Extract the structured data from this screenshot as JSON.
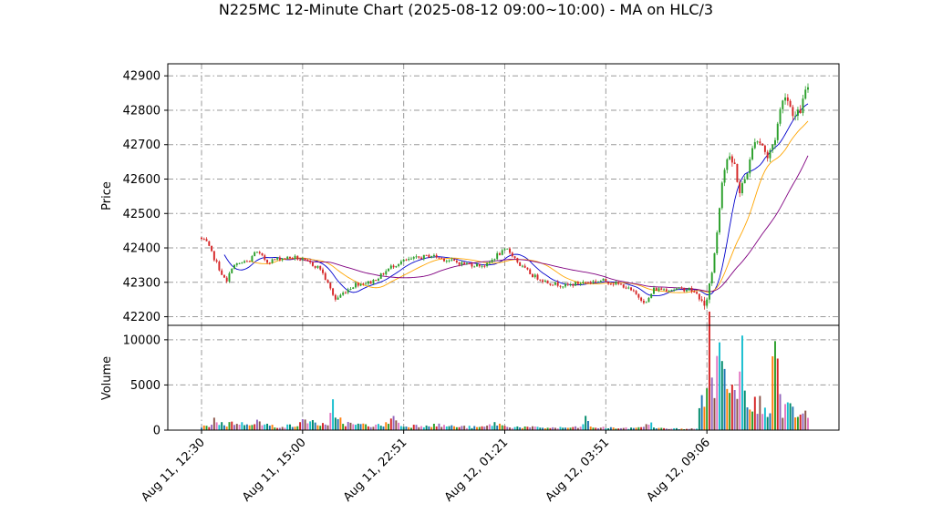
{
  "chart_data": {
    "type": "candlestick",
    "title": "N225MC 12-Minute Chart (2025-08-12 09:00~10:00) - MA on HLC/3",
    "price_panel": {
      "ylabel": "Price",
      "ylim": [
        42175,
        42935
      ],
      "yticks": [
        42200,
        42300,
        42400,
        42500,
        42600,
        42700,
        42800,
        42900
      ],
      "ytick_labels": [
        "42200",
        "42300",
        "42400",
        "42500",
        "42600",
        "42700",
        "42800",
        "42900"
      ]
    },
    "volume_panel": {
      "ylabel": "Volume",
      "ylim": [
        0,
        11600
      ],
      "yticks": [
        0,
        5000,
        10000
      ],
      "ytick_labels": [
        "0",
        "5000",
        "10000"
      ]
    },
    "x_ticks": [
      {
        "index": 0,
        "label": "Aug 11, 12:30"
      },
      {
        "index": 40,
        "label": "Aug 11, 15:00"
      },
      {
        "index": 80,
        "label": "Aug 11, 22:51"
      },
      {
        "index": 120,
        "label": "Aug 12, 01:21"
      },
      {
        "index": 160,
        "label": "Aug 12, 03:51"
      },
      {
        "index": 200,
        "label": "Aug 12, 09:06"
      }
    ],
    "bar_count": 241,
    "anchors": [
      [
        0,
        42430
      ],
      [
        3,
        42415
      ],
      [
        6,
        42370
      ],
      [
        8,
        42340
      ],
      [
        10,
        42310
      ],
      [
        11,
        42300
      ],
      [
        13,
        42345
      ],
      [
        16,
        42355
      ],
      [
        20,
        42360
      ],
      [
        22,
        42390
      ],
      [
        24,
        42380
      ],
      [
        27,
        42360
      ],
      [
        32,
        42370
      ],
      [
        38,
        42372
      ],
      [
        44,
        42355
      ],
      [
        48,
        42340
      ],
      [
        52,
        42280
      ],
      [
        54,
        42250
      ],
      [
        58,
        42275
      ],
      [
        62,
        42295
      ],
      [
        68,
        42300
      ],
      [
        72,
        42320
      ],
      [
        76,
        42345
      ],
      [
        80,
        42360
      ],
      [
        86,
        42370
      ],
      [
        92,
        42378
      ],
      [
        98,
        42365
      ],
      [
        104,
        42355
      ],
      [
        110,
        42350
      ],
      [
        114,
        42350
      ],
      [
        118,
        42380
      ],
      [
        122,
        42395
      ],
      [
        124,
        42380
      ],
      [
        127,
        42350
      ],
      [
        132,
        42320
      ],
      [
        138,
        42300
      ],
      [
        145,
        42290
      ],
      [
        152,
        42300
      ],
      [
        160,
        42305
      ],
      [
        168,
        42290
      ],
      [
        172,
        42270
      ],
      [
        177,
        42240
      ],
      [
        180,
        42280
      ],
      [
        186,
        42280
      ],
      [
        194,
        42280
      ],
      [
        198,
        42260
      ],
      [
        200,
        42220
      ],
      [
        203,
        42330
      ],
      [
        205,
        42450
      ],
      [
        207,
        42600
      ],
      [
        209,
        42660
      ],
      [
        212,
        42640
      ],
      [
        214,
        42560
      ],
      [
        216,
        42600
      ],
      [
        218,
        42650
      ],
      [
        220,
        42720
      ],
      [
        223,
        42700
      ],
      [
        225,
        42660
      ],
      [
        228,
        42720
      ],
      [
        230,
        42800
      ],
      [
        232,
        42850
      ],
      [
        234,
        42810
      ],
      [
        236,
        42780
      ],
      [
        238,
        42800
      ],
      [
        240,
        42850
      ],
      [
        241,
        42870
      ]
    ],
    "volume_anchors": [
      [
        0,
        300
      ],
      [
        3,
        500
      ],
      [
        5,
        1200
      ],
      [
        6,
        900
      ],
      [
        8,
        700
      ],
      [
        10,
        600
      ],
      [
        13,
        900
      ],
      [
        16,
        650
      ],
      [
        20,
        900
      ],
      [
        22,
        1000
      ],
      [
        24,
        600
      ],
      [
        30,
        400
      ],
      [
        38,
        500
      ],
      [
        40,
        900
      ],
      [
        42,
        1200
      ],
      [
        44,
        900
      ],
      [
        50,
        400
      ],
      [
        52,
        2500
      ],
      [
        54,
        1500
      ],
      [
        56,
        800
      ],
      [
        60,
        600
      ],
      [
        70,
        500
      ],
      [
        74,
        700
      ],
      [
        75,
        1800
      ],
      [
        78,
        700
      ],
      [
        80,
        400
      ],
      [
        90,
        600
      ],
      [
        100,
        400
      ],
      [
        110,
        300
      ],
      [
        114,
        500
      ],
      [
        116,
        800
      ],
      [
        120,
        400
      ],
      [
        130,
        300
      ],
      [
        140,
        250
      ],
      [
        150,
        300
      ],
      [
        152,
        1400
      ],
      [
        154,
        300
      ],
      [
        170,
        200
      ],
      [
        176,
        500
      ],
      [
        178,
        800
      ],
      [
        180,
        200
      ],
      [
        190,
        150
      ],
      [
        196,
        150
      ],
      [
        197,
        2000
      ],
      [
        198,
        5600
      ],
      [
        199,
        4000
      ],
      [
        200,
        4500
      ],
      [
        201,
        9300
      ],
      [
        202,
        7200
      ],
      [
        203,
        4400
      ],
      [
        204,
        9600
      ],
      [
        205,
        8200
      ],
      [
        206,
        6800
      ],
      [
        208,
        4800
      ],
      [
        210,
        7600
      ],
      [
        212,
        5000
      ],
      [
        214,
        9800
      ],
      [
        216,
        4500
      ],
      [
        218,
        3000
      ],
      [
        220,
        2500
      ],
      [
        222,
        3200
      ],
      [
        224,
        2500
      ],
      [
        225,
        2800
      ],
      [
        226,
        10800
      ],
      [
        228,
        5500
      ],
      [
        230,
        2000
      ],
      [
        232,
        3000
      ],
      [
        234,
        1800
      ],
      [
        236,
        1500
      ],
      [
        238,
        1400
      ],
      [
        240,
        2000
      ],
      [
        241,
        2300
      ]
    ],
    "moving_averages": [
      {
        "period": "short",
        "color": "#0000cc"
      },
      {
        "period": "medium",
        "color": "#ffa500"
      },
      {
        "period": "long",
        "color": "#800080"
      }
    ],
    "colors": {
      "up": "#2ca02c",
      "down": "#d62728",
      "volume_palette": [
        "#1f77b4",
        "#ff7f0e",
        "#2ca02c",
        "#d62728",
        "#9467bd",
        "#8c564b",
        "#e377c2",
        "#17becf",
        "#008b6b"
      ],
      "grid": "#9a9a9a"
    }
  }
}
